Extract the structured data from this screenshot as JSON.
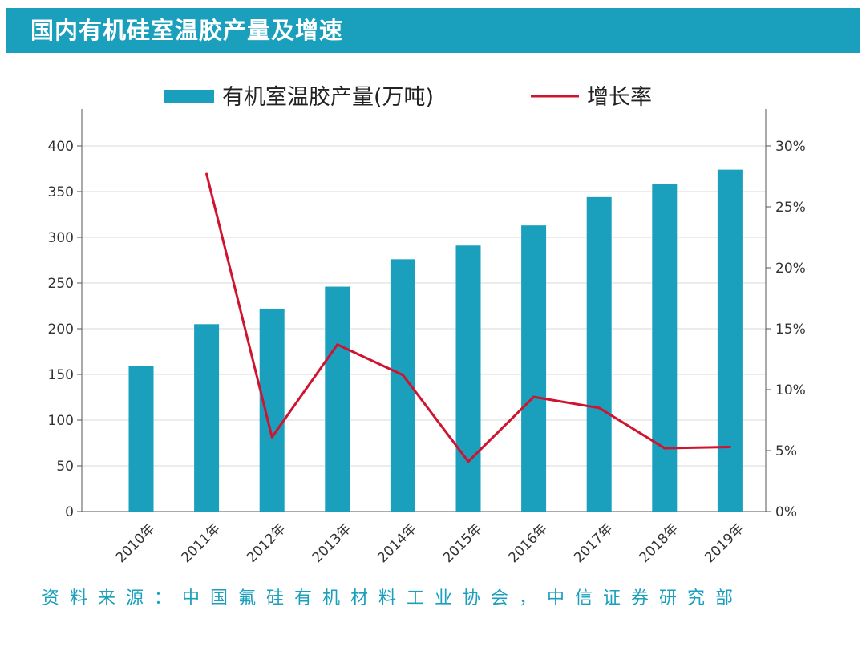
{
  "header": {
    "title": "国内有机硅室温胶产量及增速"
  },
  "source": "资料来源：中国氟硅有机材料工业协会，中信证券研究部",
  "colors": {
    "accent": "#1a9fbd",
    "bar": "#1a9fbd",
    "line": "#d0132e",
    "grid": "#d9d9d9"
  },
  "chart_data": {
    "type": "bar",
    "categories": [
      "2010年",
      "2011年",
      "2012年",
      "2013年",
      "2014年",
      "2015年",
      "2016年",
      "2017年",
      "2018年",
      "2019年"
    ],
    "series": [
      {
        "name": "有机室温胶产量(万吨)",
        "type": "bar",
        "axis": "left",
        "values": [
          159,
          205,
          222,
          246,
          276,
          291,
          313,
          344,
          358,
          374
        ]
      },
      {
        "name": "增长率",
        "type": "line",
        "axis": "right",
        "values": [
          null,
          27.7,
          6.1,
          13.7,
          11.2,
          4.1,
          9.4,
          8.5,
          5.2,
          5.3
        ]
      }
    ],
    "left_axis": {
      "ylim": [
        0,
        400
      ],
      "ticks": [
        "0",
        "50",
        "100",
        "150",
        "200",
        "250",
        "300",
        "350",
        "400"
      ]
    },
    "right_axis": {
      "ylim": [
        0,
        30
      ],
      "ticks": [
        "0%",
        "5%",
        "10%",
        "15%",
        "20%",
        "25%",
        "30%"
      ]
    },
    "grid": true,
    "legend": "top"
  }
}
